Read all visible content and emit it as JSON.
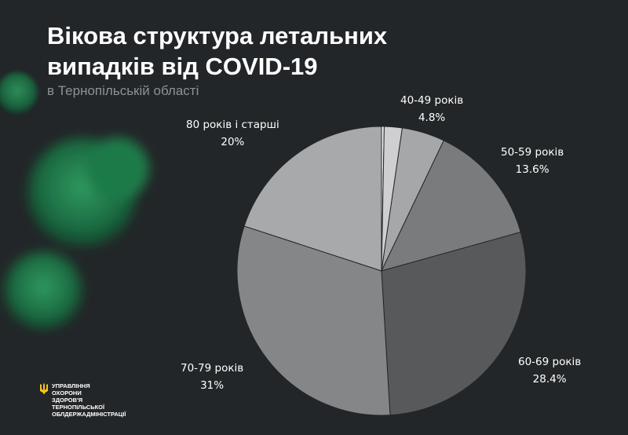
{
  "title": "Вікова структура летальних\nвипадків від  COVID-19",
  "subtitle": "в Тернопільській області",
  "logo": {
    "text": "УПРАВЛІННЯ\nОХОРОНИ\nЗДОРОВ'Я\nТЕРНОПІЛЬСЬКОЇ\nОБЛДЕРЖАДМІНІСТРАЦІЇ",
    "accent_color": "#f5c518"
  },
  "colors": {
    "background": "#232628",
    "virus": "#1f7a4c"
  },
  "chart_data": {
    "type": "pie",
    "start_angle_deg": 0,
    "direction": "clockwise",
    "slices": [
      {
        "label": "",
        "value": 0.3,
        "value_label": "",
        "color": "#ededed"
      },
      {
        "label": "",
        "value": 2.0,
        "value_label": "",
        "color": "#cfcfd1"
      },
      {
        "label": "40-49 років",
        "value": 4.8,
        "value_label": "4.8%",
        "color": "#a6a7a9"
      },
      {
        "label": "50-59 років",
        "value": 13.6,
        "value_label": "13.6%",
        "color": "#7a7b7d"
      },
      {
        "label": "60-69 років",
        "value": 28.4,
        "value_label": "28.4%",
        "color": "#58595b"
      },
      {
        "label": "70-79 років",
        "value": 31,
        "value_label": "31%",
        "color": "#858688"
      },
      {
        "label": "80 років і старші",
        "value": 20,
        "value_label": "20%",
        "color": "#a8a9ab"
      }
    ]
  }
}
